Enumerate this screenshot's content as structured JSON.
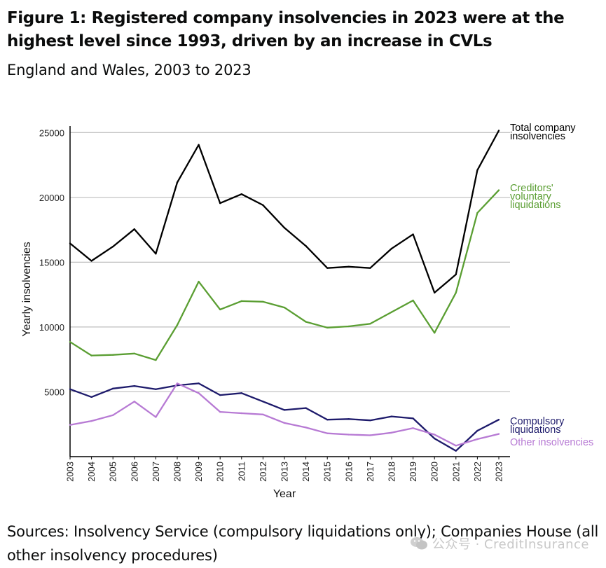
{
  "header": {
    "title": "Figure 1: Registered company insolvencies in 2023 were at the highest level since 1993, driven by an increase in CVLs",
    "subtitle": "England and Wales, 2003 to 2023"
  },
  "footer": {
    "source": "Sources: Insolvency Service (compulsory liquidations only); Companies House (all other insolvency procedures)",
    "watermark": "公众号 · CreditInsurance"
  },
  "chart_data": {
    "type": "line",
    "x": [
      2003,
      2004,
      2005,
      2006,
      2007,
      2008,
      2009,
      2010,
      2011,
      2012,
      2013,
      2014,
      2015,
      2016,
      2017,
      2018,
      2019,
      2020,
      2021,
      2022,
      2023
    ],
    "xlabel": "Year",
    "ylabel": "Yearly insolvencies",
    "ylim": [
      0,
      25500
    ],
    "yticks": [
      5000,
      10000,
      15000,
      20000,
      25000
    ],
    "grid": "horizontal",
    "legend": "direct labels at right end of lines",
    "series": [
      {
        "name": "Total company insolvencies",
        "label_lines": [
          "Total company",
          "insolvencies"
        ],
        "color": "#000000",
        "values": [
          16450,
          15100,
          16200,
          17550,
          15650,
          21150,
          24050,
          19550,
          20250,
          19400,
          17650,
          16250,
          14550,
          14650,
          14550,
          16050,
          17150,
          12650,
          14050,
          22100,
          25150
        ]
      },
      {
        "name": "Creditors' voluntary liquidations",
        "label_lines": [
          "Creditors'",
          "voluntary",
          "liquidations"
        ],
        "color": "#5a9e32",
        "values": [
          8850,
          7800,
          7850,
          7950,
          7450,
          10150,
          13500,
          11350,
          12000,
          11950,
          11500,
          10400,
          9950,
          10050,
          10250,
          11150,
          12050,
          9550,
          12650,
          18800,
          20550
        ]
      },
      {
        "name": "Compulsory liquidations",
        "label_lines": [
          "Compulsory",
          "liquidations"
        ],
        "color": "#1d1a6b",
        "values": [
          5200,
          4600,
          5250,
          5450,
          5200,
          5500,
          5650,
          4750,
          4900,
          4250,
          3600,
          3750,
          2850,
          2900,
          2800,
          3100,
          2950,
          1400,
          450,
          2000,
          2850
        ]
      },
      {
        "name": "Other insolvencies",
        "label_lines": [
          "Other insolvencies"
        ],
        "color": "#b77ad4",
        "values": [
          2450,
          2750,
          3200,
          4250,
          3050,
          5650,
          4900,
          3450,
          3350,
          3250,
          2600,
          2250,
          1800,
          1700,
          1650,
          1850,
          2200,
          1700,
          850,
          1350,
          1750
        ]
      }
    ]
  }
}
